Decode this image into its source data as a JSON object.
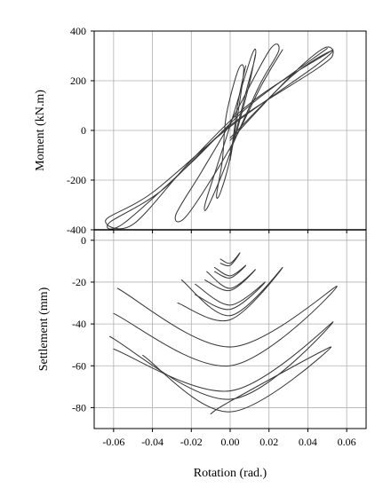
{
  "chart_data": [
    {
      "type": "line",
      "panel": "top",
      "xlabel": "Rotation (rad.)",
      "ylabel": "Moment (kN.m)",
      "xlim": [
        -0.07,
        0.07
      ],
      "ylim": [
        -400,
        400
      ],
      "grid": true,
      "x_ticks": [
        -0.06,
        -0.04,
        -0.02,
        0.0,
        0.02,
        0.04,
        0.06
      ],
      "y_ticks": [
        -400,
        -200,
        0,
        200,
        400
      ],
      "y_tick_labels": [
        "-400",
        "-200",
        "0",
        "200",
        "400"
      ],
      "series": [
        {
          "values": [
            [
              0.0,
              -120
            ],
            [
              0.005,
              120
            ],
            [
              0.007,
              250
            ],
            [
              0.004,
              240
            ],
            [
              -0.002,
              60
            ],
            [
              -0.004,
              -120
            ],
            [
              -0.007,
              -260
            ],
            [
              -0.005,
              -250
            ],
            [
              0.0,
              -110
            ],
            [
              0.004,
              110
            ],
            [
              0.008,
              260
            ]
          ]
        },
        {
          "values": [
            [
              0.0,
              -100
            ],
            [
              0.008,
              150
            ],
            [
              0.013,
              300
            ],
            [
              0.011,
              300
            ],
            [
              0.0,
              20
            ],
            [
              -0.007,
              -150
            ],
            [
              -0.013,
              -300
            ],
            [
              -0.011,
              -300
            ],
            [
              0.0,
              -90
            ],
            [
              0.009,
              160
            ],
            [
              0.013,
              305
            ]
          ]
        },
        {
          "values": [
            [
              0.0,
              -80
            ],
            [
              0.015,
              180
            ],
            [
              0.025,
              320
            ],
            [
              0.02,
              320
            ],
            [
              0.0,
              30
            ],
            [
              -0.015,
              -170
            ],
            [
              -0.028,
              -340
            ],
            [
              -0.022,
              -340
            ],
            [
              0.0,
              -70
            ],
            [
              0.016,
              180
            ],
            [
              0.027,
              325
            ]
          ]
        },
        {
          "values": [
            [
              0.0,
              -40
            ],
            [
              0.03,
              210
            ],
            [
              0.048,
              330
            ],
            [
              0.053,
              310
            ],
            [
              0.045,
              250
            ],
            [
              0.0,
              20
            ],
            [
              -0.035,
              -240
            ],
            [
              -0.062,
              -370
            ],
            [
              -0.055,
              -375
            ],
            [
              -0.02,
              -130
            ],
            [
              0.01,
              100
            ],
            [
              0.05,
              330
            ]
          ]
        },
        {
          "values": [
            [
              0.0,
              -30
            ],
            [
              0.032,
              220
            ],
            [
              0.052,
              320
            ],
            [
              0.044,
              260
            ],
            [
              0.0,
              15
            ],
            [
              -0.04,
              -250
            ],
            [
              -0.064,
              -360
            ],
            [
              -0.05,
              -378
            ],
            [
              -0.02,
              -120
            ],
            [
              0.012,
              120
            ],
            [
              0.053,
              325
            ]
          ]
        }
      ]
    },
    {
      "type": "line",
      "panel": "bottom",
      "xlabel": "Rotation (rad.)",
      "ylabel": "Settlement (mm)",
      "xlim": [
        -0.07,
        0.07
      ],
      "ylim": [
        -90,
        5
      ],
      "grid": true,
      "x_ticks": [
        -0.06,
        -0.04,
        -0.02,
        0.0,
        0.02,
        0.04,
        0.06
      ],
      "x_tick_labels": [
        "-0.06",
        "-0.04",
        "-0.02",
        "0.00",
        "0.02",
        "0.04",
        "0.06"
      ],
      "y_ticks": [
        0,
        -20,
        -40,
        -60,
        -80
      ],
      "y_tick_labels": [
        "0",
        "-20",
        "-40",
        "-60",
        "-80"
      ],
      "series": [
        {
          "values": [
            [
              -0.005,
              -9
            ],
            [
              0.0,
              -11
            ],
            [
              0.005,
              -6
            ],
            [
              0.0,
              -12
            ],
            [
              -0.005,
              -11
            ]
          ]
        },
        {
          "values": [
            [
              -0.008,
              -13
            ],
            [
              0.0,
              -17
            ],
            [
              0.008,
              -12
            ],
            [
              0.0,
              -18
            ],
            [
              -0.008,
              -15
            ]
          ]
        },
        {
          "values": [
            [
              -0.012,
              -15
            ],
            [
              0.0,
              -23
            ],
            [
              0.013,
              -14
            ],
            [
              0.0,
              -24
            ],
            [
              -0.013,
              -19
            ]
          ]
        },
        {
          "values": [
            [
              -0.018,
              -21
            ],
            [
              0.0,
              -31
            ],
            [
              0.018,
              -20
            ],
            [
              0.0,
              -33
            ],
            [
              -0.018,
              -26
            ]
          ]
        },
        {
          "values": [
            [
              -0.025,
              -19
            ],
            [
              0.0,
              -36
            ],
            [
              0.027,
              -13
            ],
            [
              0.0,
              -38
            ],
            [
              -0.027,
              -30
            ]
          ]
        },
        {
          "values": [
            [
              -0.058,
              -23
            ],
            [
              0.0,
              -51
            ],
            [
              0.055,
              -22
            ],
            [
              0.0,
              -60
            ],
            [
              -0.06,
              -35
            ]
          ]
        },
        {
          "values": [
            [
              -0.062,
              -46
            ],
            [
              0.0,
              -76
            ],
            [
              0.053,
              -39
            ],
            [
              0.0,
              -72
            ],
            [
              -0.06,
              -52
            ]
          ]
        },
        {
          "values": [
            [
              -0.045,
              -55
            ],
            [
              0.0,
              -82
            ],
            [
              0.052,
              -51
            ],
            [
              0.0,
              -77
            ],
            [
              -0.01,
              -83
            ]
          ]
        }
      ]
    }
  ]
}
